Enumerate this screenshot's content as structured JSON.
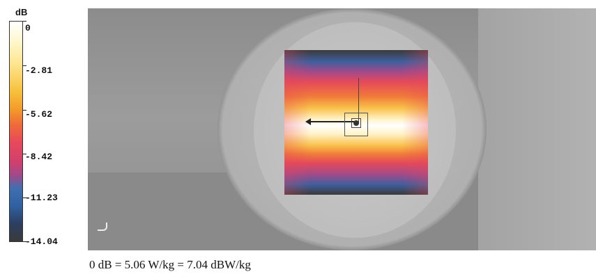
{
  "legend": {
    "unit": "dB",
    "labels": [
      "0",
      "-2.81",
      "-5.62",
      "-8.42",
      "-11.23",
      "-14.04"
    ]
  },
  "caption": "0 dB = 5.06 W/kg = 7.04 dBW/kg"
}
